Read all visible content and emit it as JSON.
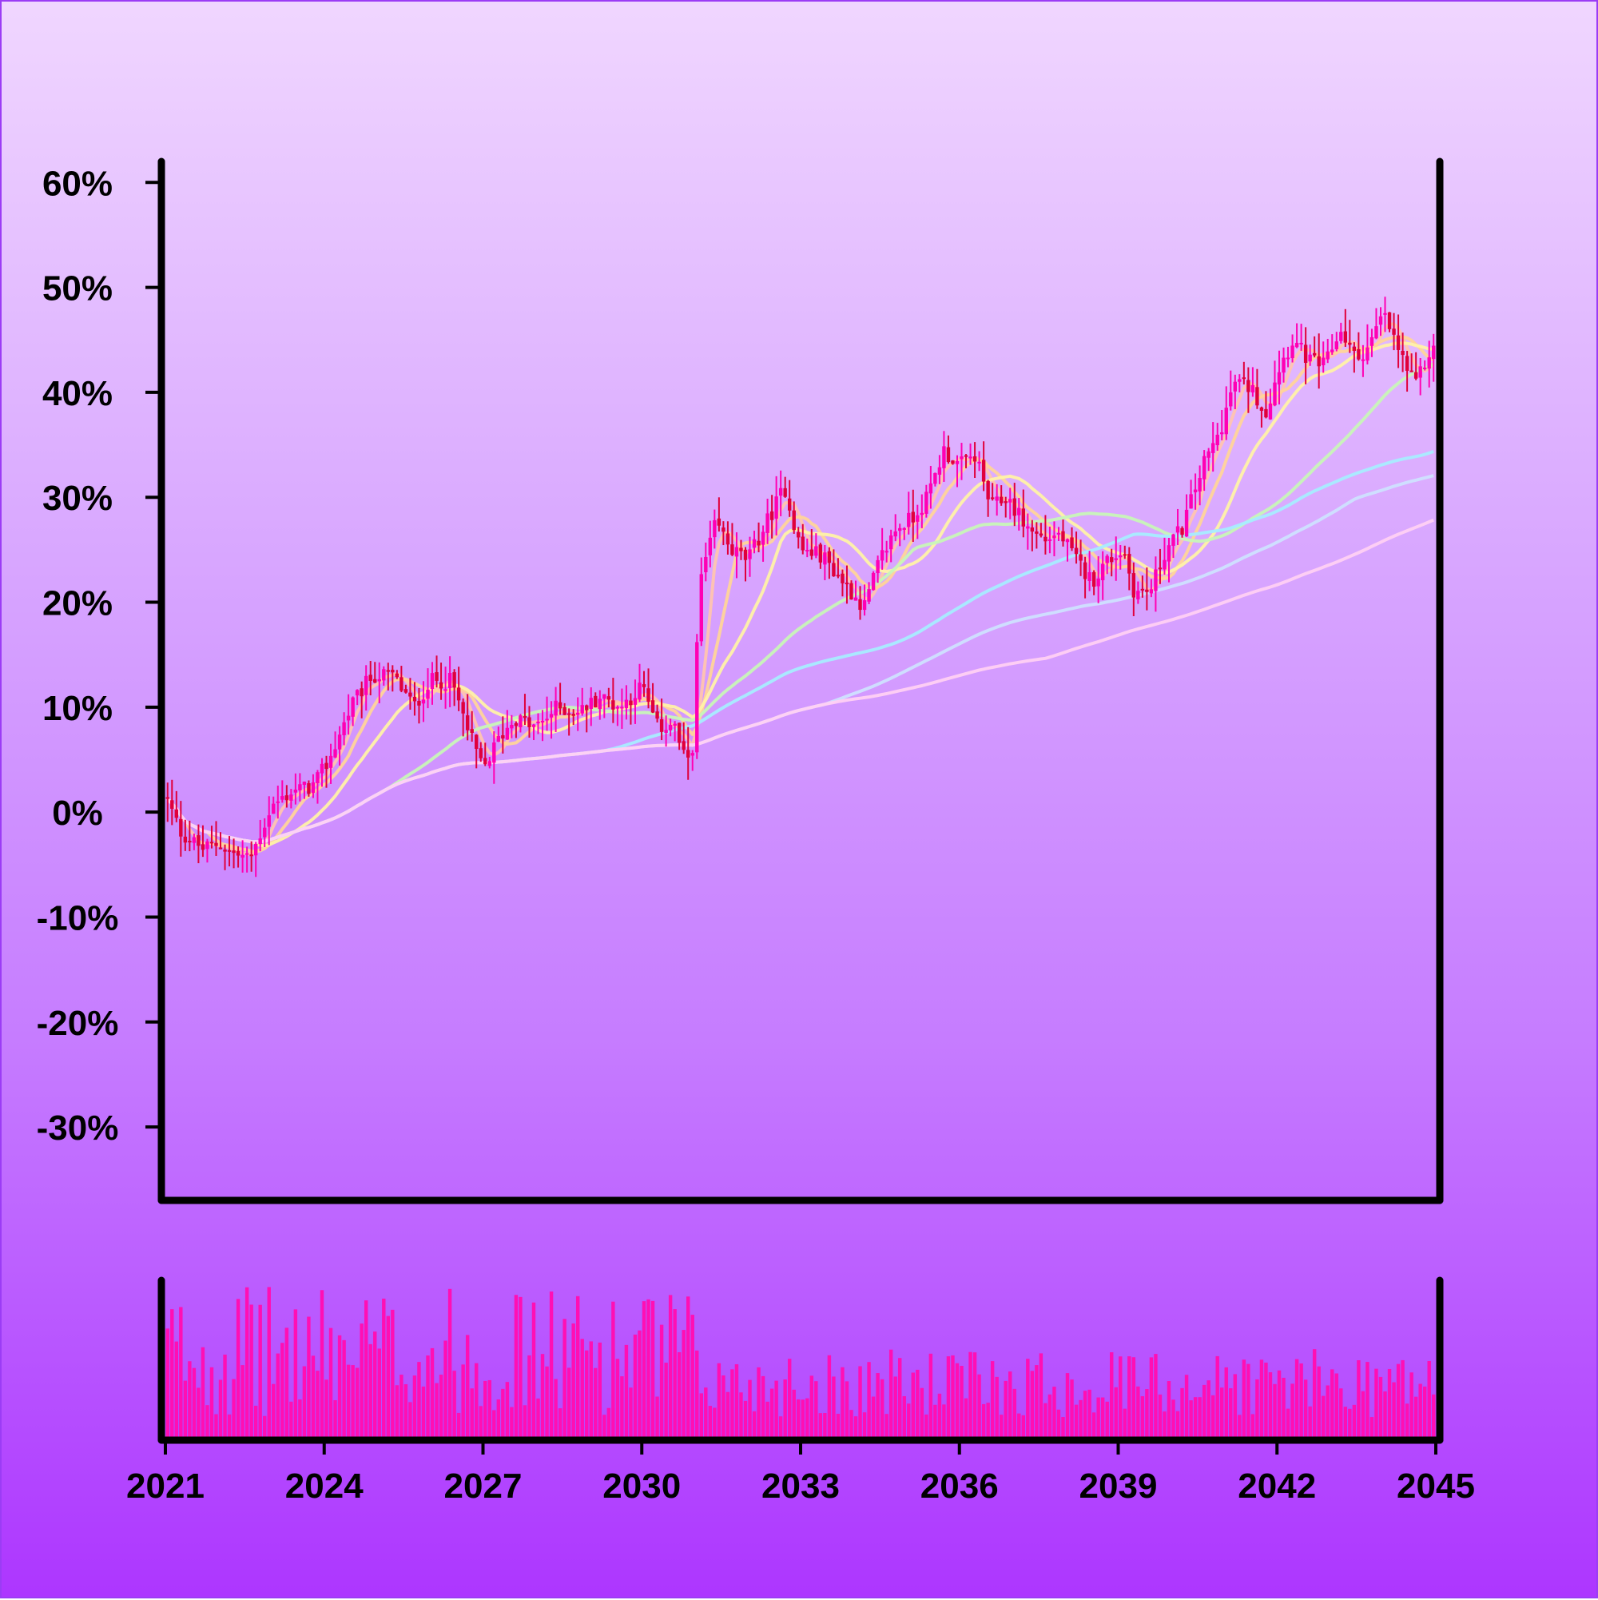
{
  "chart_data": {
    "type": "candlestick",
    "title": "",
    "xlabel": "",
    "ylabel": "",
    "grid": false,
    "legend": "none",
    "colors": {
      "background_top": "#f0d6ff",
      "background_bottom": "#ad36ff",
      "candle_up": "#ff00b4",
      "candle_down": "#e0003c",
      "volume": "#ff0fb4",
      "axes": "#000000"
    },
    "ylim": [
      -37,
      62
    ],
    "y_ticks": [
      {
        "value": 60,
        "label": "60%"
      },
      {
        "value": 50,
        "label": "50%"
      },
      {
        "value": 40,
        "label": "40%"
      },
      {
        "value": 30,
        "label": "30%"
      },
      {
        "value": 20,
        "label": "20%"
      },
      {
        "value": 10,
        "label": "10%"
      },
      {
        "value": 0,
        "label": "0%"
      },
      {
        "value": -10,
        "label": "-10%"
      },
      {
        "value": -20,
        "label": "-20%"
      },
      {
        "value": -30,
        "label": "-30%"
      }
    ],
    "xlim": [
      2021,
      2045
    ],
    "x_ticks": [
      {
        "value": 2021,
        "label": "2021"
      },
      {
        "value": 2024,
        "label": "2024"
      },
      {
        "value": 2027,
        "label": "2027"
      },
      {
        "value": 2030,
        "label": "2030"
      },
      {
        "value": 2033,
        "label": "2033"
      },
      {
        "value": 2036,
        "label": "2036"
      },
      {
        "value": 2039,
        "label": "2039"
      },
      {
        "value": 2042,
        "label": "2042"
      },
      {
        "value": 2045,
        "label": "2045"
      }
    ],
    "price_path": {
      "x": [
        2021.0,
        2021.3,
        2021.7,
        2022.0,
        2022.3,
        2022.6,
        2023.0,
        2023.4,
        2023.8,
        2024.1,
        2024.5,
        2024.9,
        2025.3,
        2025.7,
        2026.0,
        2026.4,
        2026.7,
        2027.0,
        2027.3,
        2027.6,
        2028.0,
        2028.4,
        2028.8,
        2029.2,
        2029.6,
        2030.0,
        2030.3,
        2030.6,
        2030.8,
        2030.95,
        2031.1,
        2031.4,
        2031.7,
        2032.0,
        2032.4,
        2032.7,
        2033.0,
        2033.4,
        2033.8,
        2034.2,
        2034.5,
        2034.8,
        2035.1,
        2035.4,
        2035.7,
        2036.0,
        2036.3,
        2036.6,
        2036.9,
        2037.3,
        2037.6,
        2037.9,
        2038.2,
        2038.5,
        2038.8,
        2039.1,
        2039.3,
        2039.6,
        2039.9,
        2040.2,
        2040.6,
        2040.9,
        2041.2,
        2041.5,
        2041.8,
        2042.0,
        2042.3,
        2042.6,
        2042.9,
        2043.2,
        2043.5,
        2043.8,
        2044.0,
        2044.3,
        2044.6,
        2044.9
      ],
      "y": [
        1.5,
        -2.0,
        -3.5,
        -3.0,
        -4.0,
        -4.5,
        0.5,
        2.0,
        2.5,
        5.0,
        10.0,
        13.0,
        13.0,
        10.0,
        12.5,
        12.5,
        8.0,
        4.0,
        7.0,
        9.0,
        8.0,
        10.0,
        9.5,
        11.0,
        10.0,
        12.0,
        8.0,
        8.5,
        5.0,
        5.5,
        22.0,
        27.5,
        25.0,
        24.0,
        28.0,
        31.0,
        25.0,
        24.5,
        22.0,
        19.5,
        24.0,
        27.0,
        28.0,
        30.0,
        34.5,
        33.0,
        34.0,
        29.0,
        30.0,
        27.0,
        26.0,
        26.5,
        24.0,
        22.0,
        24.0,
        25.0,
        21.0,
        21.0,
        25.0,
        27.0,
        33.0,
        36.0,
        41.0,
        40.5,
        38.0,
        42.0,
        45.0,
        43.0,
        42.5,
        46.0,
        43.0,
        45.0,
        47.5,
        44.0,
        40.5,
        44.0
      ]
    },
    "moving_average_windows": [
      5,
      10,
      20,
      50,
      100,
      150,
      200
    ]
  }
}
